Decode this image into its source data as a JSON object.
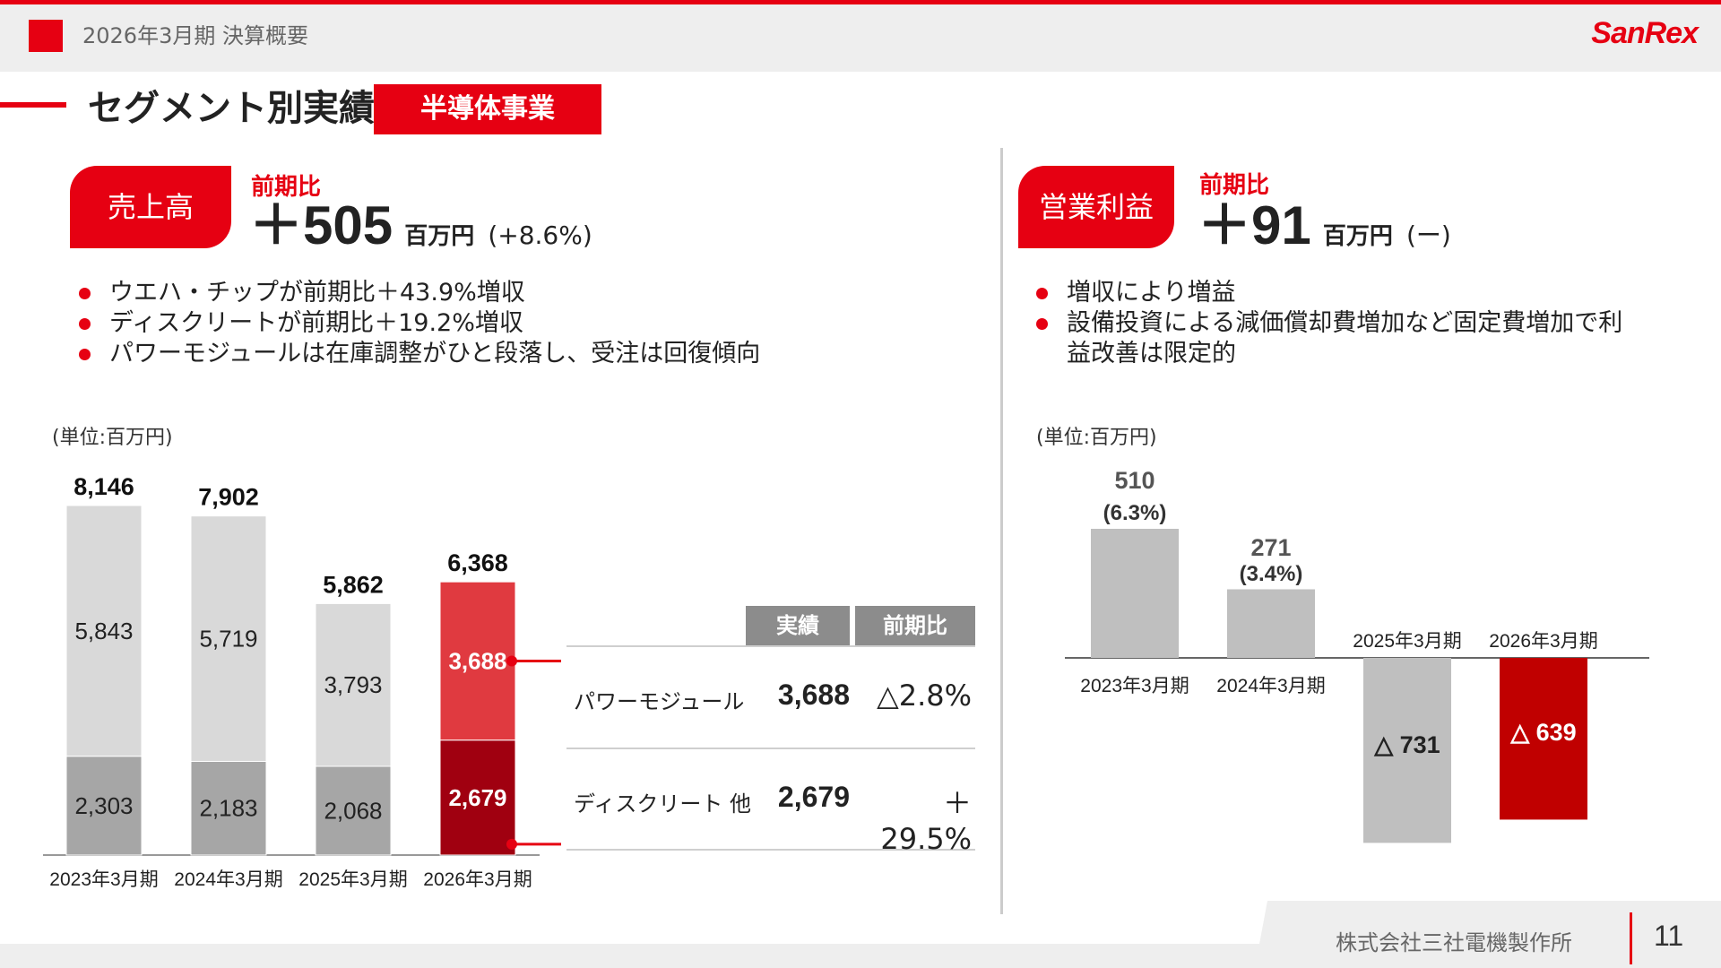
{
  "header": {
    "title": "2026年3月期 決算概要",
    "logo": "SanRex"
  },
  "section": {
    "title": "セグメント別実績",
    "badge": "半導体事業"
  },
  "sales": {
    "tag": "売上高",
    "compare_label": "前期比",
    "value": "＋505",
    "unit": "百万円",
    "pct": "(+8.6%)",
    "bullets": [
      "ウエハ・チップが前期比＋43.9%増収",
      "ディスクリートが前期比＋19.2%増収",
      "パワーモジュールは在庫調整がひと段落し、受注は回復傾向"
    ],
    "unit_note": "(単位:百万円)"
  },
  "profit": {
    "tag": "営業利益",
    "compare_label": "前期比",
    "value": "＋91",
    "unit": "百万円",
    "pct": "(ー)",
    "bullets": [
      "増収により増益",
      "設備投資による減価償却費増加など固定費増加で利益改善は限定的"
    ],
    "unit_note": "(単位:百万円)"
  },
  "breakdown_table": {
    "headers": [
      "実績",
      "前期比"
    ],
    "rows": [
      {
        "name": "パワーモジュール",
        "value": "3,688",
        "change": "△2.8%"
      },
      {
        "name": "ディスクリート 他",
        "value": "2,679",
        "change": "＋29.5%"
      }
    ]
  },
  "colors": {
    "accent": "#e60012",
    "light_gray": "#d9d9d9",
    "mid_gray": "#a6a6a6",
    "bar_red_light": "#e03a40",
    "bar_red_dark": "#a00010",
    "profit_gray": "#bfbfbf",
    "profit_red": "#c00000"
  },
  "chart_data": [
    {
      "type": "bar",
      "stacked": true,
      "categories": [
        "2023年3月期",
        "2024年3月期",
        "2025年3月期",
        "2026年3月期"
      ],
      "series": [
        {
          "name": "ディスクリート 他",
          "values": [
            2303,
            2183,
            2068,
            2679
          ],
          "labels": [
            "2,303",
            "2,183",
            "2,068",
            "2,679"
          ]
        },
        {
          "name": "パワーモジュール",
          "values": [
            5843,
            5719,
            3793,
            3688
          ],
          "labels": [
            "5,843",
            "5,719",
            "3,793",
            "3,688"
          ]
        }
      ],
      "totals": [
        8146,
        7902,
        5862,
        6368
      ],
      "total_labels": [
        "8,146",
        "7,902",
        "5,862",
        "6,368"
      ],
      "ylim": [
        0,
        8700
      ]
    },
    {
      "type": "bar",
      "categories": [
        "2023年3月期",
        "2024年3月期",
        "2025年3月期",
        "2026年3月期"
      ],
      "values": [
        510,
        271,
        -731,
        -639
      ],
      "value_labels": [
        "510",
        "271",
        "△ 731",
        "△ 639"
      ],
      "margin_labels": [
        "(6.3%)",
        "(3.4%)",
        "",
        ""
      ],
      "ylim": [
        -731,
        510
      ]
    }
  ],
  "footer": {
    "company": "株式会社三社電機製作所",
    "page": "11"
  }
}
